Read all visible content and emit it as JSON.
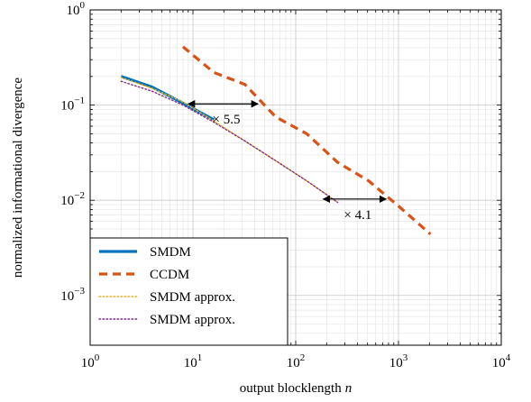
{
  "chart_data": {
    "type": "line",
    "title": "",
    "xlabel": "output blocklength",
    "xlabel_var": "n",
    "ylabel": "normalized informational divergence",
    "xscale": "log",
    "yscale": "log",
    "xlim": [
      1,
      10000
    ],
    "ylim": [
      0.0003,
      1
    ],
    "grid": true,
    "legend_position": "lower-left",
    "x_ticks": [
      {
        "value": 1,
        "base": "10",
        "exp": "0"
      },
      {
        "value": 10,
        "base": "10",
        "exp": "1"
      },
      {
        "value": 100,
        "base": "10",
        "exp": "2"
      },
      {
        "value": 1000,
        "base": "10",
        "exp": "3"
      },
      {
        "value": 10000,
        "base": "10",
        "exp": "4"
      }
    ],
    "y_ticks": [
      {
        "value": 1,
        "base": "10",
        "exp": "0"
      },
      {
        "value": 0.1,
        "base": "10",
        "exp": "−1"
      },
      {
        "value": 0.01,
        "base": "10",
        "exp": "−2"
      },
      {
        "value": 0.001,
        "base": "10",
        "exp": "−3"
      }
    ],
    "series": [
      {
        "name": "SMDM",
        "color": "#0072BD",
        "style": "solid",
        "x": [
          2,
          4,
          8,
          16
        ],
        "y": [
          0.2,
          0.155,
          0.105,
          0.07
        ]
      },
      {
        "name": "CCDM",
        "color": "#D95319",
        "style": "dashed",
        "x": [
          8,
          16,
          32,
          64,
          128,
          256,
          512,
          1024,
          2048
        ],
        "y": [
          0.41,
          0.22,
          0.165,
          0.075,
          0.05,
          0.025,
          0.016,
          0.0085,
          0.0044
        ]
      },
      {
        "name": "SMDM approx.",
        "color": "#EDB120",
        "style": "dotted",
        "x": [
          2,
          4,
          8,
          16,
          32,
          64,
          128,
          256
        ],
        "y": [
          0.195,
          0.15,
          0.108,
          0.068,
          0.042,
          0.026,
          0.016,
          0.0095
        ]
      },
      {
        "name": "SMDM approx.",
        "color": "#7E2F8E",
        "style": "dotted",
        "x": [
          2,
          4,
          8,
          16,
          32,
          64,
          128,
          256
        ],
        "y": [
          0.178,
          0.14,
          0.1,
          0.066,
          0.042,
          0.026,
          0.016,
          0.0095
        ]
      }
    ],
    "annotations": [
      {
        "label": "× 5.5",
        "text": "5.5",
        "y": 0.103,
        "x_from": 9,
        "x_to": 43
      },
      {
        "label": "× 4.1",
        "text": "4.1",
        "y": 0.0103,
        "x_from": 185,
        "x_to": 760
      }
    ]
  }
}
